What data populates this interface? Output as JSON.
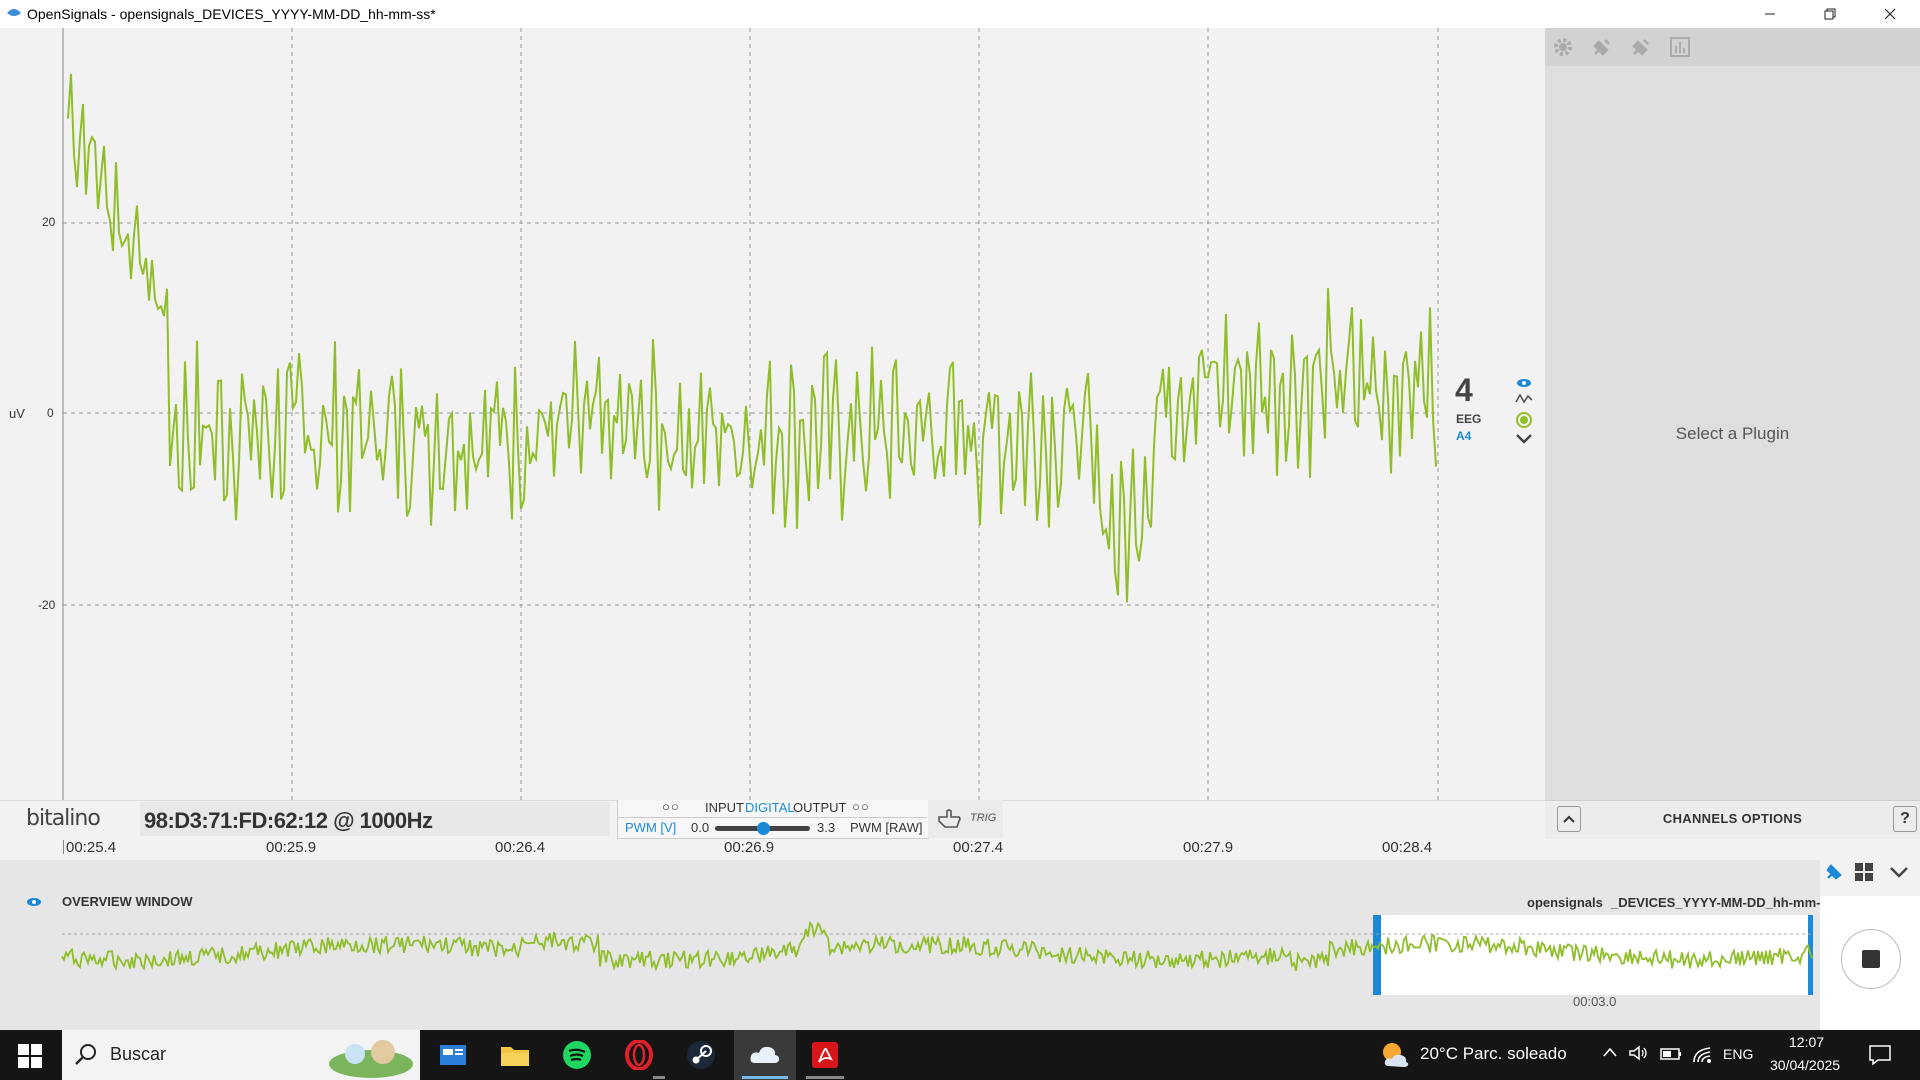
{
  "window": {
    "title": "OpenSignals - opensignals_DEVICES_YYYY-MM-DD_hh-mm-ss*",
    "minimize_icon": "minimize-icon",
    "restore_icon": "restore-icon",
    "close_icon": "close-icon"
  },
  "plot": {
    "y_unit": "uV",
    "y_ticks": [
      "20",
      "0",
      "-20"
    ],
    "x_ticks": [
      "00:25.4",
      "00:25.9",
      "00:26.4",
      "00:26.9",
      "00:27.4",
      "00:27.9",
      "00:28.4"
    ],
    "signal_color": "#8fbe2a",
    "channel": {
      "number": "4",
      "type": "EEG",
      "port": "A4"
    },
    "channel_icons": [
      "eye-icon",
      "waveform-icon",
      "record-dot-icon",
      "chevron-down-icon"
    ]
  },
  "device": {
    "brand": "bitalino",
    "mac": "98:D3:71:FD:62:12 @ 1000Hz",
    "io_circles_left": "○○",
    "io_circles_right": "○○",
    "io_input": "INPUT",
    "io_digital": "DIGITAL",
    "io_output": "OUTPUT",
    "pwm_v": "PWM [V]",
    "pwm_min": "0.0",
    "pwm_max": "3.3",
    "pwm_level": 0.5,
    "pwm_raw": "PWM [RAW]",
    "trig": "TRIG"
  },
  "plugin_panel": {
    "tools": [
      "settings-gear-icon",
      "plugin-connect-icon",
      "plugin-disconnect-icon",
      "bar-chart-icon"
    ],
    "placeholder": "Select a Plugin",
    "channels_options": "CHANNELS OPTIONS",
    "help": "?"
  },
  "overview": {
    "title": "OVERVIEW WINDOW",
    "file_prefix": "opensignals",
    "file_name": "_DEVICES_YYYY-MM-DD_hh-mm-ss",
    "duration": "00:03.0",
    "stop_icon": "stop-icon"
  },
  "taskbar": {
    "search_placeholder": "Buscar",
    "weather": "20°C  Parc. soleado",
    "language": "ENG",
    "time": "12:07",
    "date": "30/04/2025",
    "apps": [
      "file-explorer-icon",
      "folder-icon",
      "spotify-icon",
      "opera-icon",
      "steam-icon",
      "cloud-icon",
      "acrobat-icon"
    ]
  },
  "colors": {
    "accent_blue": "#1a8ad8",
    "signal_green": "#8fbe2a"
  }
}
